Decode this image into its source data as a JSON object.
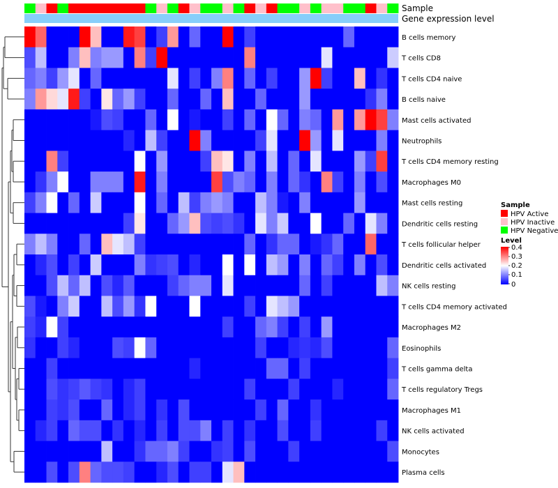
{
  "chart_data": {
    "type": "heatmap",
    "annotation_titles": {
      "sample": "Sample",
      "gene_expression": "Gene expression level"
    },
    "rows": [
      "B cells memory",
      "T cells CD8",
      "T cells CD4 naive",
      "B cells naive",
      "Mast cells activated",
      "Neutrophils",
      "T cells CD4 memory resting",
      "Macrophages M0",
      "Mast cells resting",
      "Dendritic cells resting",
      "T cells follicular helper",
      "Dendritic cells activated",
      "NK cells resting",
      "T cells CD4 memory activated",
      "Macrophages M2",
      "Eosinophils",
      "T cells gamma delta",
      "T cells regulatory  Tregs",
      "Macrophages M1",
      "NK cells activated",
      "Monocytes",
      "Plasma cells"
    ],
    "sample_groups": [
      "G",
      "I",
      "A",
      "G",
      "A",
      "A",
      "A",
      "A",
      "A",
      "A",
      "A",
      "G",
      "I",
      "G",
      "A",
      "I",
      "G",
      "G",
      "I",
      "G",
      "A",
      "I",
      "A",
      "G",
      "G",
      "I",
      "G",
      "I",
      "I",
      "G",
      "G",
      "A",
      "I",
      "G"
    ],
    "legend": {
      "sample_title": "Sample",
      "sample_entries": [
        {
          "code": "A",
          "label": "HPV Active",
          "color": "#ff0000"
        },
        {
          "code": "I",
          "label": "HPV Inactive",
          "color": "#ffc0cb"
        },
        {
          "code": "G",
          "label": "HPV Negative",
          "color": "#00ff00"
        }
      ],
      "level_title": "Level",
      "level_ticks": [
        "0.4",
        "0.3",
        "0.2",
        "0.1",
        "0"
      ]
    },
    "color_scale": {
      "low": "#0000ff",
      "mid": "#ffffff",
      "high": "#ff0000",
      "min": 0,
      "mid_value": 0.2,
      "max": 0.4
    },
    "matrix": [
      [
        0.4,
        0.32,
        0,
        0,
        0,
        0.4,
        0.25,
        0,
        0,
        0.38,
        0.35,
        0,
        0.05,
        0.28,
        0,
        0.08,
        0,
        0,
        0.4,
        0,
        0.05,
        0,
        0,
        0,
        0,
        0,
        0,
        0,
        0,
        0.08,
        0,
        0,
        0,
        0
      ],
      [
        0.06,
        0.15,
        0,
        0,
        0.1,
        0.25,
        0.1,
        0.12,
        0.12,
        0,
        0.3,
        0.05,
        0.4,
        0,
        0,
        0,
        0,
        0,
        0,
        0,
        0.3,
        0,
        0,
        0,
        0,
        0,
        0,
        0.18,
        0,
        0,
        0,
        0,
        0,
        0.16
      ],
      [
        0.08,
        0.1,
        0.05,
        0.12,
        0.18,
        0,
        0.08,
        0,
        0,
        0,
        0,
        0,
        0,
        0.18,
        0,
        0.05,
        0,
        0.1,
        0.3,
        0,
        0.08,
        0,
        0.05,
        0,
        0,
        0.12,
        0.4,
        0.05,
        0,
        0,
        0.25,
        0,
        0.04,
        0
      ],
      [
        0.1,
        0.28,
        0.23,
        0.18,
        0.38,
        0.05,
        0,
        0.22,
        0.08,
        0.12,
        0.05,
        0,
        0,
        0.08,
        0,
        0,
        0.08,
        0,
        0.25,
        0,
        0,
        0.08,
        0,
        0,
        0,
        0.12,
        0,
        0,
        0,
        0,
        0,
        0.04,
        0.1,
        0
      ],
      [
        0,
        0,
        0,
        0,
        0,
        0,
        0.02,
        0.06,
        0.05,
        0,
        0,
        0.08,
        0,
        0.2,
        0,
        0.02,
        0,
        0,
        0.05,
        0,
        0.08,
        0,
        0.2,
        0.08,
        0,
        0.1,
        0.08,
        0,
        0.28,
        0,
        0.28,
        0.4,
        0.35,
        0.1
      ],
      [
        0,
        0,
        0,
        0,
        0,
        0,
        0,
        0,
        0,
        0.03,
        0,
        0.15,
        0.05,
        0,
        0,
        0.4,
        0.1,
        0,
        0,
        0,
        0,
        0.05,
        0.18,
        0,
        0,
        0.4,
        0.12,
        0,
        0.18,
        0,
        0,
        0,
        0.1,
        0
      ],
      [
        0,
        0,
        0.3,
        0.05,
        0,
        0,
        0,
        0,
        0,
        0,
        0.2,
        0,
        0.12,
        0,
        0,
        0,
        0.05,
        0.25,
        0.22,
        0,
        0.1,
        0,
        0.15,
        0,
        0.08,
        0,
        0.18,
        0,
        0,
        0,
        0.12,
        0.05,
        0.35,
        0
      ],
      [
        0,
        0.04,
        0.1,
        0.2,
        0,
        0,
        0.1,
        0.1,
        0.1,
        0,
        0.38,
        0,
        0.1,
        0,
        0,
        0,
        0,
        0.35,
        0.06,
        0.1,
        0.08,
        0,
        0.1,
        0,
        0.08,
        0.04,
        0,
        0.3,
        0.05,
        0,
        0.1,
        0,
        0.06,
        0
      ],
      [
        0.05,
        0.1,
        0.2,
        0,
        0.08,
        0,
        0.16,
        0,
        0,
        0,
        0.2,
        0,
        0.08,
        0,
        0.15,
        0.05,
        0.1,
        0.12,
        0.1,
        0,
        0,
        0.15,
        0.1,
        0.02,
        0,
        0.1,
        0,
        0,
        0,
        0,
        0.12,
        0,
        0,
        0
      ],
      [
        0,
        0,
        0,
        0,
        0,
        0,
        0,
        0,
        0,
        0.05,
        0.22,
        0,
        0,
        0.08,
        0.12,
        0.25,
        0.06,
        0.05,
        0.06,
        0.04,
        0,
        0.18,
        0.1,
        0.16,
        0,
        0,
        0.2,
        0,
        0,
        0.08,
        0,
        0.18,
        0.1,
        0
      ],
      [
        0.1,
        0.15,
        0.1,
        0,
        0,
        0.08,
        0,
        0.25,
        0.18,
        0.15,
        0.05,
        0,
        0,
        0,
        0,
        0,
        0,
        0,
        0,
        0,
        0.08,
        0,
        0.04,
        0.08,
        0.08,
        0,
        0.02,
        0.04,
        0.08,
        0,
        0,
        0.32,
        0,
        0
      ],
      [
        0,
        0.03,
        0.06,
        0,
        0.05,
        0,
        0.16,
        0,
        0,
        0,
        0.1,
        0.04,
        0.05,
        0.06,
        0,
        0.03,
        0,
        0,
        0.2,
        0,
        0.2,
        0,
        0.15,
        0.12,
        0,
        0.1,
        0,
        0.08,
        0.05,
        0,
        0.1,
        0,
        0.06,
        0
      ],
      [
        0,
        0,
        0.06,
        0.15,
        0.08,
        0.15,
        0,
        0.06,
        0.03,
        0.07,
        0,
        0,
        0,
        0.05,
        0.08,
        0.1,
        0.1,
        0,
        0.18,
        0,
        0,
        0,
        0,
        0,
        0,
        0.08,
        0,
        0.05,
        0,
        0,
        0,
        0,
        0.15,
        0.1
      ],
      [
        0.06,
        0.02,
        0,
        0.1,
        0.16,
        0,
        0,
        0.15,
        0.06,
        0.12,
        0.04,
        0.2,
        0,
        0,
        0,
        0.2,
        0,
        0,
        0,
        0,
        0.05,
        0,
        0.18,
        0.15,
        0.12,
        0,
        0,
        0,
        0,
        0,
        0,
        0,
        0,
        0
      ],
      [
        0.05,
        0.03,
        0.2,
        0.05,
        0,
        0,
        0,
        0,
        0,
        0,
        0,
        0,
        0,
        0,
        0,
        0,
        0,
        0,
        0.05,
        0,
        0,
        0.08,
        0.1,
        0.05,
        0,
        0.05,
        0,
        0.12,
        0,
        0,
        0,
        0,
        0,
        0
      ],
      [
        0.04,
        0,
        0,
        0.05,
        0.03,
        0,
        0,
        0,
        0.06,
        0.05,
        0.2,
        0.08,
        0,
        0,
        0,
        0,
        0,
        0,
        0,
        0,
        0,
        0.05,
        0,
        0,
        0.03,
        0.04,
        0.03,
        0.06,
        0,
        0,
        0,
        0,
        0,
        0.08
      ],
      [
        0,
        0,
        0.05,
        0,
        0,
        0,
        0,
        0,
        0,
        0,
        0,
        0,
        0,
        0,
        0,
        0.03,
        0,
        0,
        0,
        0,
        0,
        0,
        0.08,
        0.08,
        0,
        0.05,
        0,
        0,
        0,
        0,
        0,
        0,
        0,
        0.05
      ],
      [
        0,
        0,
        0.06,
        0.04,
        0.05,
        0.07,
        0.05,
        0.04,
        0,
        0.03,
        0.05,
        0,
        0,
        0,
        0,
        0,
        0,
        0,
        0,
        0,
        0.05,
        0,
        0,
        0,
        0.05,
        0,
        0,
        0,
        0.03,
        0,
        0,
        0,
        0,
        0.08
      ],
      [
        0,
        0,
        0.05,
        0.04,
        0.06,
        0,
        0,
        0.08,
        0,
        0.03,
        0.05,
        0,
        0.04,
        0,
        0.06,
        0,
        0,
        0,
        0,
        0,
        0,
        0.05,
        0,
        0.08,
        0,
        0,
        0.04,
        0,
        0,
        0,
        0,
        0,
        0,
        0
      ],
      [
        0,
        0.03,
        0.05,
        0,
        0.08,
        0.06,
        0.06,
        0,
        0.04,
        0,
        0.03,
        0,
        0.05,
        0,
        0.06,
        0.06,
        0.1,
        0,
        0.05,
        0,
        0.04,
        0,
        0,
        0.06,
        0,
        0,
        0.05,
        0,
        0,
        0,
        0,
        0,
        0.05,
        0
      ],
      [
        0,
        0,
        0,
        0,
        0,
        0,
        0,
        0.15,
        0,
        0,
        0.04,
        0.08,
        0.08,
        0.1,
        0.05,
        0,
        0,
        0.04,
        0.05,
        0,
        0.06,
        0,
        0,
        0,
        0.05,
        0,
        0,
        0,
        0,
        0,
        0,
        0,
        0,
        0.06
      ],
      [
        0,
        0,
        0.06,
        0,
        0.06,
        0.3,
        0.08,
        0.06,
        0.06,
        0.05,
        0,
        0,
        0.03,
        0.06,
        0,
        0.05,
        0.05,
        0,
        0.18,
        0.25,
        0,
        0,
        0,
        0,
        0,
        0,
        0,
        0,
        0,
        0,
        0,
        0,
        0,
        0
      ]
    ]
  }
}
